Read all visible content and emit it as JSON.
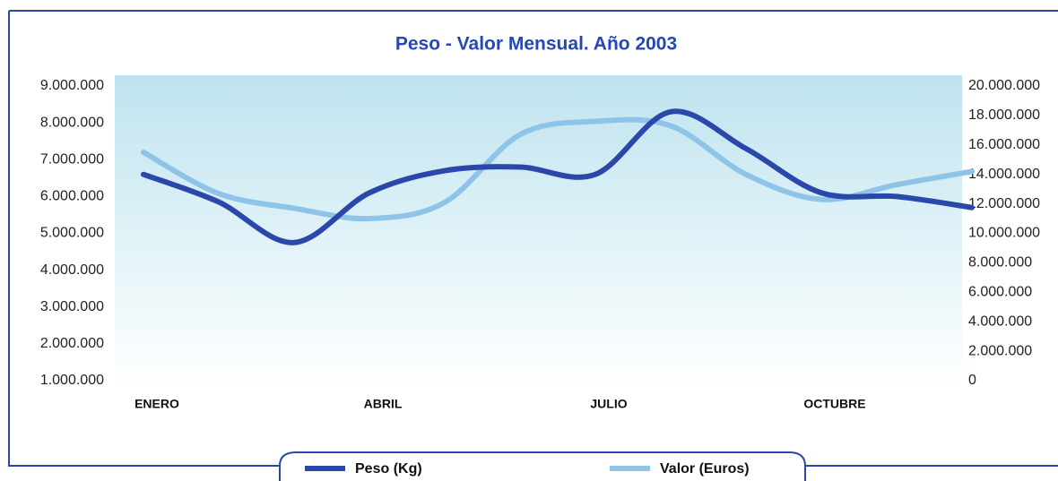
{
  "chart_data": {
    "type": "line",
    "title": "Peso - Valor Mensual. Año 2003",
    "categories": [
      "ENERO",
      null,
      null,
      "ABRIL",
      null,
      null,
      "JULIO",
      null,
      null,
      "OCTUBRE",
      null,
      null
    ],
    "series": [
      {
        "name": "Peso (Kg)",
        "color": "#2a48aa",
        "values": [
          6600000,
          5850000,
          4750000,
          6100000,
          6700000,
          6800000,
          6600000,
          8300000,
          7300000,
          6100000,
          6000000,
          5700000
        ]
      },
      {
        "name": "Valor (Euros)",
        "color": "#8ec4e8",
        "axis": "y2",
        "values": [
          15500000,
          12700000,
          11700000,
          11000000,
          12100000,
          16700000,
          17600000,
          17300000,
          14000000,
          12300000,
          13300000,
          14200000
        ]
      }
    ],
    "ylim": [
      1000000,
      9000000
    ],
    "yticks": [
      {
        "value": 1000000,
        "label": "1.000.000"
      },
      {
        "value": 2000000,
        "label": "2.000.000"
      },
      {
        "value": 3000000,
        "label": "3.000.000"
      },
      {
        "value": 4000000,
        "label": "4.000.000"
      },
      {
        "value": 5000000,
        "label": "5.000.000"
      },
      {
        "value": 6000000,
        "label": "6.000.000"
      },
      {
        "value": 7000000,
        "label": "7.000.000"
      },
      {
        "value": 8000000,
        "label": "8.000.000"
      },
      {
        "value": 9000000,
        "label": "9.000.000"
      }
    ],
    "y2lim": [
      0,
      20000000
    ],
    "y2ticks": [
      0,
      {
        "value": 2000000,
        "label": "2.000.000"
      },
      {
        "value": 4000000,
        "label": "4.000.000"
      },
      {
        "value": 6000000,
        "label": "6.000.000"
      },
      {
        "value": 8000000,
        "label": "8.000.000"
      },
      {
        "value": 10000000,
        "label": "10.000.000"
      },
      {
        "value": 12000000,
        "label": "12.000.000"
      },
      {
        "value": 14000000,
        "label": "14.000.000"
      },
      {
        "value": 16000000,
        "label": "16.000.000"
      },
      {
        "value": 18000000,
        "label": "18.000.000"
      },
      {
        "value": 20000000,
        "label": "20.000.000"
      }
    ]
  }
}
